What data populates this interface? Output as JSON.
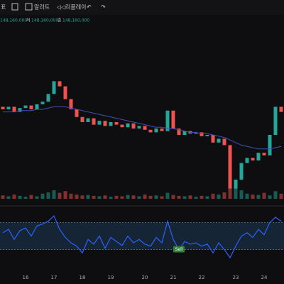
{
  "toolbar": {
    "items": [
      "표",
      "알러트",
      "리플레이"
    ]
  },
  "legend_line": {
    "parts": [
      "148,160,000",
      "저",
      "148,160,000",
      "종",
      "148,160,000"
    ]
  },
  "chart_data": {
    "type": "candlestick",
    "categories": [
      null,
      null,
      null,
      null,
      "16",
      null,
      null,
      null,
      null,
      "17",
      null,
      null,
      null,
      null,
      "18",
      null,
      null,
      null,
      null,
      "19",
      null,
      null,
      null,
      null,
      null,
      "20",
      null,
      null,
      null,
      null,
      "21",
      null,
      null,
      null,
      null,
      "22",
      null,
      null,
      null,
      null,
      null,
      "23",
      null,
      null,
      null,
      null,
      "24",
      null,
      null,
      null
    ],
    "open": [
      72,
      70,
      72,
      68,
      71,
      73,
      70,
      74,
      76,
      82,
      92,
      88,
      78,
      70,
      64,
      60,
      63,
      58,
      61,
      57,
      60,
      58,
      56,
      59,
      55,
      57,
      54,
      52,
      55,
      53,
      69,
      55,
      50,
      53,
      51,
      52,
      49,
      50,
      44,
      47,
      42,
      8,
      15,
      28,
      32,
      30,
      36,
      34,
      50,
      72
    ],
    "close": [
      70,
      72,
      68,
      71,
      73,
      70,
      74,
      76,
      82,
      92,
      88,
      78,
      70,
      64,
      60,
      63,
      58,
      61,
      57,
      60,
      58,
      56,
      59,
      55,
      57,
      54,
      52,
      55,
      53,
      69,
      55,
      50,
      53,
      51,
      52,
      49,
      50,
      44,
      47,
      42,
      8,
      15,
      28,
      32,
      30,
      36,
      34,
      50,
      72,
      68
    ],
    "ma": [
      68,
      68,
      68,
      69,
      69,
      69,
      70,
      70,
      71,
      72,
      72,
      72,
      71,
      70,
      69,
      68,
      67,
      66,
      65,
      64,
      63,
      62,
      61,
      60,
      59,
      58,
      57,
      56,
      56,
      55,
      55,
      54,
      53,
      52,
      52,
      51,
      51,
      50,
      49,
      48,
      46,
      44,
      42,
      41,
      40,
      39,
      39,
      39,
      40,
      41
    ],
    "volume": [
      8,
      6,
      10,
      7,
      5,
      9,
      6,
      12,
      15,
      20,
      14,
      18,
      12,
      10,
      8,
      9,
      7,
      6,
      8,
      5,
      7,
      6,
      9,
      8,
      6,
      10,
      7,
      8,
      6,
      14,
      9,
      7,
      6,
      8,
      5,
      7,
      6,
      12,
      10,
      15,
      45,
      30,
      20,
      12,
      10,
      9,
      14,
      8,
      18,
      12
    ],
    "rsi": [
      55,
      60,
      45,
      58,
      62,
      50,
      65,
      68,
      72,
      80,
      60,
      48,
      40,
      35,
      25,
      45,
      38,
      50,
      32,
      48,
      42,
      36,
      50,
      40,
      45,
      38,
      35,
      48,
      40,
      72,
      45,
      30,
      42,
      38,
      40,
      35,
      38,
      25,
      40,
      30,
      18,
      35,
      50,
      55,
      48,
      60,
      52,
      70,
      78,
      72
    ],
    "ylim": [
      0,
      100
    ],
    "volume_lim": [
      0,
      100
    ],
    "rsi_lim": [
      0,
      100
    ],
    "rsi_band": [
      30,
      70
    ],
    "annotation": {
      "text": "Sell",
      "index": 31
    },
    "up_color": "#26a69a",
    "down_color": "#ef5350",
    "ma_color": "#3f51b5",
    "rsi_color": "#2962ff"
  }
}
